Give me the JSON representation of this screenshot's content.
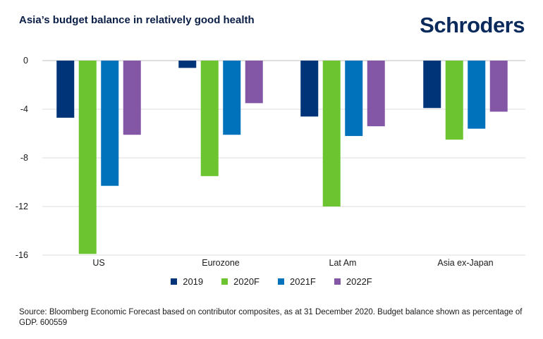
{
  "title": "Asia’s budget balance in relatively good health",
  "brand": "Schroders",
  "footnote": "Source: Bloomberg Economic Forecast based on contributor composites, as at 31 December 2020. Budget balance shown as percentage of GDP. 600559",
  "chart_data": {
    "type": "bar",
    "title": "Asia’s budget balance in relatively good health",
    "xlabel": "",
    "ylabel": "",
    "categories": [
      "US",
      "Eurozone",
      "Lat Am",
      "Asia ex-Japan"
    ],
    "ylim": [
      -16,
      0
    ],
    "yticks": [
      0,
      -4,
      -8,
      -12,
      -16
    ],
    "grid": true,
    "legend_position": "bottom",
    "series": [
      {
        "name": "2019",
        "color": "#003478",
        "values": [
          -4.7,
          -0.6,
          -4.6,
          -3.9
        ]
      },
      {
        "name": "2020F",
        "color": "#6cc530",
        "values": [
          -15.9,
          -9.5,
          -12.0,
          -6.5
        ]
      },
      {
        "name": "2021F",
        "color": "#0072bc",
        "values": [
          -10.3,
          -6.1,
          -6.2,
          -5.6
        ]
      },
      {
        "name": "2022F",
        "color": "#8356a6",
        "values": [
          -6.1,
          -3.5,
          -5.4,
          -4.2
        ]
      }
    ]
  }
}
